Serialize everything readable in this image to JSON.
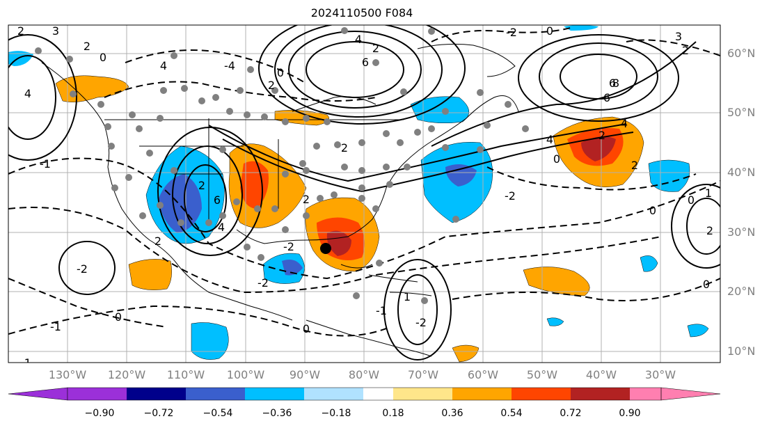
{
  "title": "2024110500 F084",
  "lat_labels": [
    "60°N",
    "50°N",
    "40°N",
    "30°N",
    "20°N",
    "10°N"
  ],
  "lon_labels": [
    "130°W",
    "120°W",
    "110°W",
    "100°W",
    "90°W",
    "80°W",
    "70°W",
    "60°W",
    "50°W",
    "40°W",
    "30°W"
  ],
  "colorbar": {
    "ticks": [
      "−0.90",
      "−0.72",
      "−0.54",
      "−0.36",
      "−0.18",
      "0.18",
      "0.36",
      "0.54",
      "0.72",
      "0.90"
    ],
    "colors": [
      "#9b30d9",
      "#00008b",
      "#3a5fcd",
      "#00bfff",
      "#b0e2ff",
      "#ffffff",
      "#ffe68a",
      "#ffa500",
      "#ff4500",
      "#b22222",
      "#ff7fb0"
    ]
  },
  "contour_labels": [
    "2",
    "3",
    "2",
    "0",
    "4",
    "4",
    "6",
    "4",
    "2",
    "0",
    "2",
    "-4",
    "6",
    "-2",
    "0",
    "4",
    "8",
    "6",
    "2",
    "4",
    "-2",
    "-1",
    "6",
    "2",
    "-2",
    "2",
    "-2",
    "1",
    "0",
    "-1",
    "0",
    "2",
    "1",
    "-2",
    "0",
    "0",
    "2",
    "-1",
    "0",
    "2",
    "4",
    "2",
    "-2",
    "-1",
    "0",
    "2",
    "3"
  ]
}
